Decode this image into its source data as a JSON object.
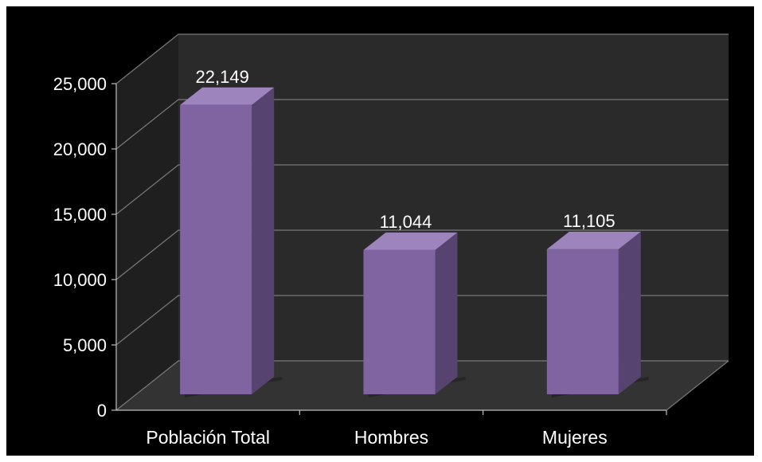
{
  "chart_data": {
    "type": "bar",
    "title": "",
    "xlabel": "",
    "ylabel": "",
    "categories": [
      "Población Total",
      "Hombres",
      "Mujeres"
    ],
    "values": [
      22149,
      11044,
      11105
    ],
    "value_labels": [
      "22,149",
      "11,044",
      "11,105"
    ],
    "yticks": [
      "0",
      "5,000",
      "10,000",
      "15,000",
      "20,000",
      "25,000"
    ],
    "ylim": [
      0,
      25000
    ],
    "grid": true,
    "legend": "none",
    "three_d": true,
    "colors": {
      "background": "#000000",
      "wall": "#2a2a2a",
      "floor": "#333333",
      "gridline": "#7a7a7a",
      "bar_front": "#8064a2",
      "bar_side": "#56436f",
      "bar_top": "#9d84bd",
      "text": "#ffffff"
    }
  }
}
